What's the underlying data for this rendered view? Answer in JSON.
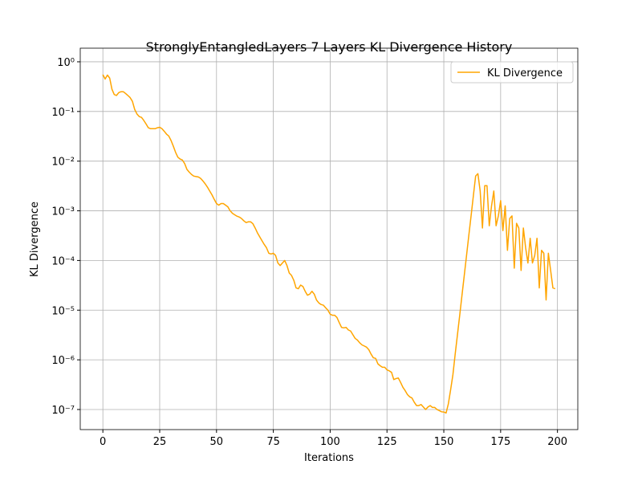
{
  "chart_data": {
    "type": "line",
    "title": "StronglyEntangledLayers 7 Layers KL Divergence History",
    "x_label": "Iterations",
    "y_label": "KL Divergence",
    "x": [
      0,
      1,
      2,
      3,
      4,
      5,
      6,
      7,
      8,
      9,
      10,
      11,
      12,
      13,
      14,
      15,
      16,
      17,
      18,
      19,
      20,
      21,
      22,
      23,
      24,
      25,
      26,
      27,
      28,
      29,
      30,
      31,
      32,
      33,
      34,
      35,
      36,
      37,
      38,
      39,
      40,
      41,
      42,
      43,
      44,
      45,
      46,
      47,
      48,
      49,
      50,
      51,
      52,
      53,
      54,
      55,
      56,
      57,
      58,
      59,
      60,
      61,
      62,
      63,
      64,
      65,
      66,
      67,
      68,
      69,
      70,
      71,
      72,
      73,
      74,
      75,
      76,
      77,
      78,
      79,
      80,
      81,
      82,
      83,
      84,
      85,
      86,
      87,
      88,
      89,
      90,
      91,
      92,
      93,
      94,
      95,
      96,
      97,
      98,
      99,
      100,
      101,
      102,
      103,
      104,
      105,
      106,
      107,
      108,
      109,
      110,
      111,
      112,
      113,
      114,
      115,
      116,
      117,
      118,
      119,
      120,
      121,
      122,
      123,
      124,
      125,
      126,
      127,
      128,
      129,
      130,
      131,
      132,
      133,
      134,
      135,
      136,
      137,
      138,
      139,
      140,
      141,
      142,
      143,
      144,
      145,
      146,
      147,
      148,
      149,
      150,
      151,
      152,
      153,
      154,
      155,
      156,
      157,
      158,
      159,
      160,
      161,
      162,
      163,
      164,
      165,
      166,
      167,
      168,
      169,
      170,
      171,
      172,
      173,
      174,
      175,
      176,
      177,
      178,
      179,
      180,
      181,
      182,
      183,
      184,
      185,
      186,
      187,
      188,
      189,
      190,
      191,
      192,
      193,
      194,
      195,
      196,
      197,
      198,
      199
    ],
    "series": [
      {
        "name": "KL Divergence",
        "color": "#ffa500",
        "values": [
          0.55,
          0.45,
          0.54,
          0.47,
          0.28,
          0.22,
          0.21,
          0.24,
          0.25,
          0.25,
          0.23,
          0.21,
          0.19,
          0.16,
          0.11,
          0.089,
          0.079,
          0.076,
          0.066,
          0.056,
          0.047,
          0.045,
          0.045,
          0.045,
          0.047,
          0.048,
          0.045,
          0.04,
          0.035,
          0.032,
          0.026,
          0.02,
          0.015,
          0.012,
          0.011,
          0.0105,
          0.0089,
          0.0068,
          0.006,
          0.0054,
          0.005,
          0.0049,
          0.0048,
          0.0045,
          0.004,
          0.0035,
          0.003,
          0.0025,
          0.0021,
          0.0017,
          0.0014,
          0.0013,
          0.0014,
          0.0014,
          0.0013,
          0.0012,
          0.001,
          0.00089,
          0.00083,
          0.00078,
          0.00075,
          0.0007,
          0.00063,
          0.00058,
          0.0006,
          0.0006,
          0.00055,
          0.00045,
          0.00036,
          0.0003,
          0.00025,
          0.00021,
          0.00018,
          0.00014,
          0.000135,
          0.00014,
          0.000126,
          8.9e-05,
          7.9e-05,
          8.9e-05,
          0.0001,
          7.9e-05,
          5.6e-05,
          5e-05,
          4e-05,
          2.8e-05,
          2.7e-05,
          3.2e-05,
          3e-05,
          2.4e-05,
          2e-05,
          2.1e-05,
          2.4e-05,
          2.1e-05,
          1.6e-05,
          1.4e-05,
          1.3e-05,
          1.26e-05,
          1.12e-05,
          1e-05,
          8.3e-06,
          7.9e-06,
          7.9e-06,
          7.1e-06,
          5.6e-06,
          4.5e-06,
          4.4e-06,
          4.5e-06,
          4e-06,
          3.8e-06,
          3.2e-06,
          2.7e-06,
          2.5e-06,
          2.2e-06,
          2e-06,
          1.9e-06,
          1.8e-06,
          1.6e-06,
          1.3e-06,
          1.1e-06,
          1.07e-06,
          8.3e-07,
          7.6e-07,
          7.1e-07,
          7.1e-07,
          6.3e-07,
          6e-07,
          5.6e-07,
          4e-07,
          4.2e-07,
          4.3e-07,
          3.5e-07,
          2.8e-07,
          2.4e-07,
          2e-07,
          1.8e-07,
          1.7e-07,
          1.4e-07,
          1.2e-07,
          1.2e-07,
          1.26e-07,
          1.12e-07,
          1e-07,
          1.12e-07,
          1.2e-07,
          1.1e-07,
          1.1e-07,
          1e-07,
          9.5e-08,
          9e-08,
          8.9e-08,
          8.5e-08,
          1.3e-07,
          2.5e-07,
          5e-07,
          1.3e-06,
          3.2e-06,
          7.9e-06,
          2e-05,
          5e-05,
          0.000126,
          0.00032,
          0.00079,
          0.002,
          0.005,
          0.0056,
          0.0025,
          0.00045,
          0.0032,
          0.0032,
          0.0005,
          0.00126,
          0.0025,
          0.0005,
          0.00079,
          0.0016,
          0.0004,
          0.00126,
          0.00016,
          0.0007,
          0.00079,
          7e-05,
          0.00056,
          0.00045,
          6.3e-05,
          0.00045,
          0.00018,
          8.9e-05,
          0.00028,
          8.9e-05,
          0.000126,
          0.00028,
          2.8e-05,
          0.00016,
          0.00014,
          1.6e-05,
          0.00014,
          6.3e-05,
          2.8e-05,
          2.7e-05
        ]
      }
    ],
    "xlim": [
      -9.95,
      208.95
    ],
    "xticks": [
      0,
      25,
      50,
      75,
      100,
      125,
      150,
      175,
      200
    ],
    "ylim": [
      3.94e-08,
      1.88
    ],
    "y_log": true,
    "yticks": [
      {
        "value": 1e-07,
        "label": "10⁻⁷"
      },
      {
        "value": 1e-06,
        "label": "10⁻⁶"
      },
      {
        "value": 1e-05,
        "label": "10⁻⁵"
      },
      {
        "value": 0.0001,
        "label": "10⁻⁴"
      },
      {
        "value": 0.001,
        "label": "10⁻³"
      },
      {
        "value": 0.01,
        "label": "10⁻²"
      },
      {
        "value": 0.1,
        "label": "10⁻¹"
      },
      {
        "value": 1,
        "label": "10⁰"
      }
    ],
    "grid": true,
    "legend_position": "upper-right"
  }
}
